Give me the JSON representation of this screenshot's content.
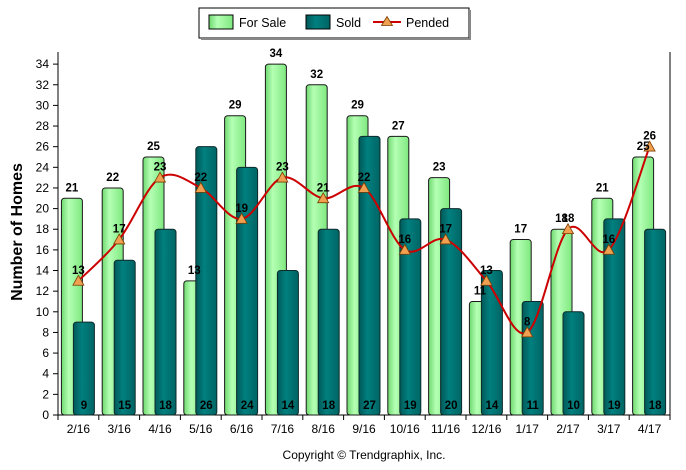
{
  "chart_data": {
    "type": "bar",
    "categories": [
      "2/16",
      "3/16",
      "4/16",
      "5/16",
      "6/16",
      "7/16",
      "8/16",
      "9/16",
      "10/16",
      "11/16",
      "12/16",
      "1/17",
      "2/17",
      "3/17",
      "4/17"
    ],
    "series": [
      {
        "name": "For Sale",
        "kind": "bar",
        "color": "#99ff99",
        "values": [
          21,
          22,
          25,
          13,
          29,
          34,
          32,
          29,
          27,
          23,
          11,
          17,
          18,
          21,
          25
        ]
      },
      {
        "name": "Sold",
        "kind": "bar",
        "color": "#007a7a",
        "values": [
          9,
          15,
          18,
          26,
          24,
          14,
          18,
          27,
          19,
          20,
          14,
          11,
          10,
          19,
          18
        ]
      },
      {
        "name": "Pended",
        "kind": "line",
        "color": "#cc0000",
        "marker_color": "#f0a050",
        "values": [
          13,
          17,
          23,
          22,
          19,
          23,
          21,
          22,
          16,
          17,
          13,
          8,
          18,
          16,
          26
        ]
      }
    ],
    "ylabel": "Number of Homes",
    "xlabel": "",
    "ylim": [
      0,
      35
    ],
    "yticks": [
      0,
      2,
      4,
      6,
      8,
      10,
      12,
      14,
      16,
      18,
      20,
      22,
      24,
      26,
      28,
      30,
      32,
      34
    ],
    "grid": false,
    "legend_position": "top-center"
  },
  "footer": {
    "copyright": "Copyright © Trendgraphix, Inc."
  }
}
